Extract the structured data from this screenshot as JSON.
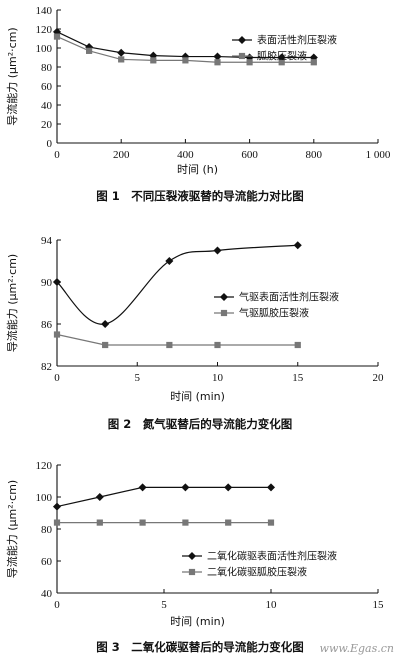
{
  "chart_data": [
    {
      "type": "line",
      "caption": "图 1　不同压裂液驱替的导流能力对比图",
      "xlabel": "时间 (h)",
      "ylabel": "导流能力 (μm²·cm)",
      "xlim": [
        0,
        1000
      ],
      "ylim": [
        0,
        140
      ],
      "xticks": [
        "0",
        "200",
        "400",
        "600",
        "800",
        "1 000"
      ],
      "xtick_values": [
        0,
        200,
        400,
        600,
        800,
        1000
      ],
      "yticks": [
        "0",
        "20",
        "40",
        "60",
        "80",
        "100",
        "120",
        "140"
      ],
      "ytick_values": [
        0,
        20,
        40,
        60,
        80,
        100,
        120,
        140
      ],
      "legend_position": "top-right",
      "series": [
        {
          "name": "表面活性剂压裂液",
          "marker": "diamond",
          "color": "#111111",
          "x": [
            0,
            100,
            200,
            300,
            400,
            500,
            600,
            700,
            800
          ],
          "y": [
            117,
            101,
            95,
            92,
            91,
            91,
            90,
            90,
            90
          ]
        },
        {
          "name": "胍胶压裂液",
          "marker": "square",
          "color": "#777777",
          "x": [
            0,
            100,
            200,
            300,
            400,
            500,
            600,
            700,
            800
          ],
          "y": [
            112,
            97,
            88,
            87,
            87,
            85,
            85,
            85,
            85
          ]
        }
      ]
    },
    {
      "type": "line",
      "caption": "图 2　氮气驱替后的导流能力变化图",
      "xlabel": "时间 (min)",
      "ylabel": "导流能力 (μm²·cm)",
      "xlim": [
        0,
        20
      ],
      "ylim": [
        82,
        94
      ],
      "xticks": [
        "0",
        "5",
        "10",
        "15",
        "20"
      ],
      "xtick_values": [
        0,
        5,
        10,
        15,
        20
      ],
      "yticks": [
        "82",
        "86",
        "90",
        "94"
      ],
      "ytick_values": [
        82,
        86,
        90,
        94
      ],
      "legend_position": "center-right",
      "series": [
        {
          "name": "气驱表面活性剂压裂液",
          "marker": "diamond",
          "color": "#111111",
          "smooth": true,
          "x": [
            0,
            3,
            7,
            10,
            15
          ],
          "y": [
            90,
            86,
            92,
            93,
            93.5
          ]
        },
        {
          "name": "气驱胍胶压裂液",
          "marker": "square",
          "color": "#777777",
          "x": [
            0,
            3,
            7,
            10,
            15
          ],
          "y": [
            85,
            84,
            84,
            84,
            84
          ]
        }
      ]
    },
    {
      "type": "line",
      "caption": "图 3　二氧化碳驱替后的导流能力变化图",
      "xlabel": "时间 (min)",
      "ylabel": "导流能力 (μm²·cm)",
      "xlim": [
        0,
        15
      ],
      "ylim": [
        40,
        120
      ],
      "xticks": [
        "0",
        "5",
        "10",
        "15"
      ],
      "xtick_values": [
        0,
        5,
        10,
        15
      ],
      "yticks": [
        "40",
        "60",
        "80",
        "100",
        "120"
      ],
      "ytick_values": [
        40,
        60,
        80,
        100,
        120
      ],
      "legend_position": "bottom-right",
      "series": [
        {
          "name": "二氧化碳驱表面活性剂压裂液",
          "marker": "diamond",
          "color": "#111111",
          "x": [
            0,
            2,
            4,
            6,
            8,
            10
          ],
          "y": [
            94,
            100,
            106,
            106,
            106,
            106
          ]
        },
        {
          "name": "二氧化碳驱胍胶压裂液",
          "marker": "square",
          "color": "#777777",
          "x": [
            0,
            2,
            4,
            6,
            8,
            10
          ],
          "y": [
            84,
            84,
            84,
            84,
            84,
            84
          ]
        }
      ]
    }
  ],
  "watermark": "www.Egas.cn"
}
